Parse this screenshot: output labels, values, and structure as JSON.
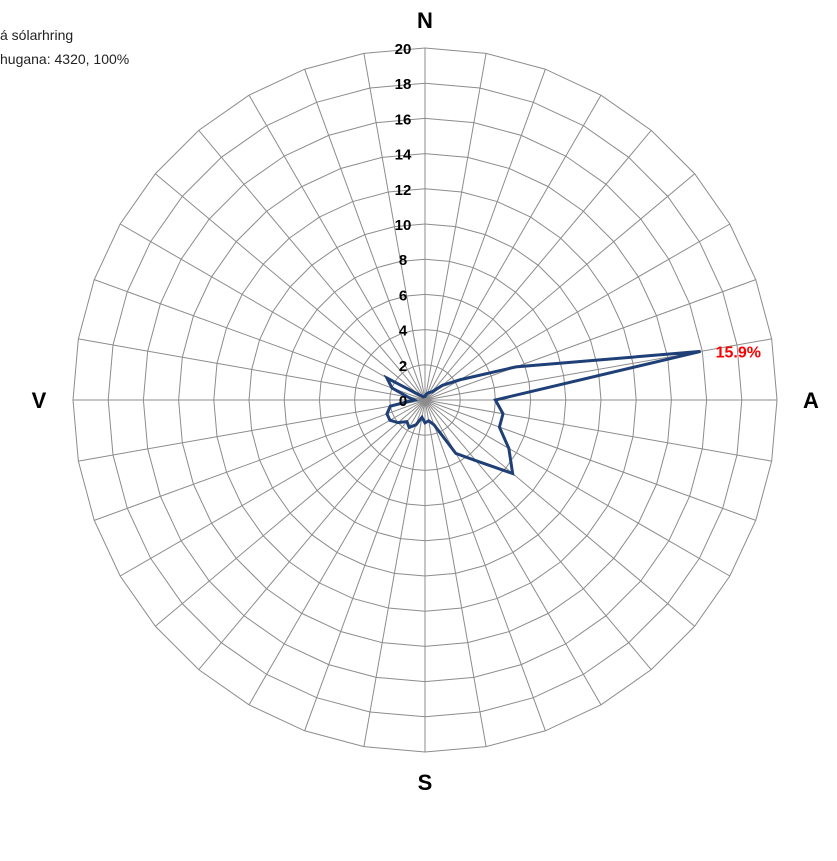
{
  "notes": {
    "line1": "á sólarhring",
    "line2": "hugana: 4320, 100%"
  },
  "colors": {
    "grid": "#8c8c8c",
    "series": "#1f3f77",
    "highlight": "#ff0000",
    "text": "#000000"
  },
  "chart_data": {
    "type": "radar",
    "rmax": 20,
    "ticks": [
      "0",
      "2",
      "4",
      "6",
      "8",
      "10",
      "12",
      "14",
      "16",
      "18",
      "20"
    ],
    "tick_values": [
      0,
      2,
      4,
      6,
      8,
      10,
      12,
      14,
      16,
      18,
      20
    ],
    "spokes": 36,
    "directions": [
      {
        "label": "N",
        "angle": 0
      },
      {
        "label": "A",
        "angle": 90
      },
      {
        "label": "S",
        "angle": 180
      },
      {
        "label": "V",
        "angle": 270
      }
    ],
    "series": [
      {
        "angles": [
          0,
          10,
          20,
          30,
          40,
          50,
          60,
          70,
          80,
          90,
          100,
          110,
          120,
          130,
          140,
          150,
          160,
          170,
          180,
          190,
          200,
          210,
          220,
          230,
          240,
          250,
          260,
          270,
          280,
          290,
          300,
          310,
          320,
          330,
          340,
          350
        ],
        "values": [
          0.2,
          0.3,
          0.4,
          0.5,
          0.6,
          1.3,
          2.3,
          5.5,
          15.9,
          4.0,
          4.5,
          4.5,
          5.5,
          6.5,
          4.5,
          3.5,
          1.5,
          1.2,
          1.3,
          1.0,
          1.5,
          1.8,
          1.6,
          2.0,
          2.3,
          2.3,
          2.0,
          0.6,
          1.0,
          2.0,
          2.5,
          0.5,
          0.3,
          0.2,
          0.2,
          0.2
        ]
      }
    ],
    "annotations": [
      {
        "text": "15.9%",
        "angle": 80,
        "value": 15.9
      }
    ]
  }
}
